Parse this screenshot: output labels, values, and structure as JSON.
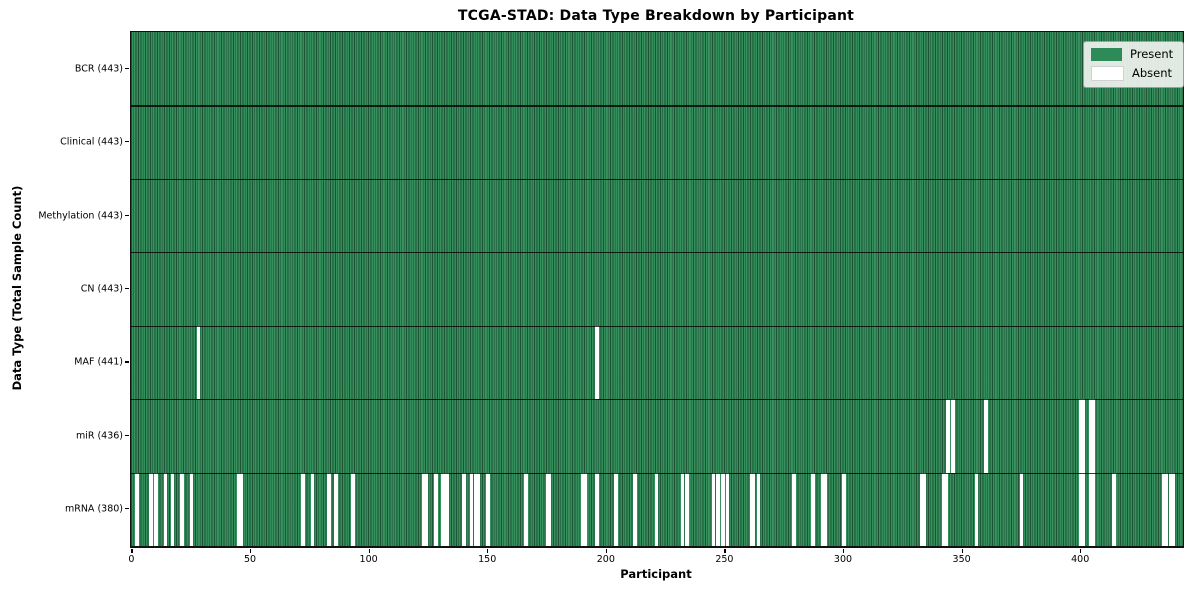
{
  "chart_data": {
    "type": "heatmap",
    "title": "TCGA-STAD: Data Type Breakdown by Participant",
    "xlabel": "Participant",
    "ylabel": "Data Type (Total Sample Count)",
    "x_range": [
      0,
      443
    ],
    "x_ticks": [
      0,
      50,
      100,
      150,
      200,
      250,
      300,
      350,
      400
    ],
    "n_participants": 443,
    "grid": false,
    "legend_position": "upper right",
    "colors": {
      "present": "#2e8b57",
      "absent": "#ffffff",
      "bar_edge": "rgba(0,0,0,0.40)"
    },
    "legend": [
      {
        "label": "Present",
        "color": "#2e8b57"
      },
      {
        "label": "Absent",
        "color": "#ffffff"
      }
    ],
    "rows": [
      {
        "label": "BCR (443)",
        "data_type": "BCR",
        "total_samples": 443,
        "absent_participants": []
      },
      {
        "label": "Clinical (443)",
        "data_type": "Clinical",
        "total_samples": 443,
        "absent_participants": []
      },
      {
        "label": "Methylation (443)",
        "data_type": "Methylation",
        "total_samples": 443,
        "absent_participants": []
      },
      {
        "label": "CN (443)",
        "data_type": "CN",
        "total_samples": 443,
        "absent_participants": []
      },
      {
        "label": "MAF (441)",
        "data_type": "MAF",
        "total_samples": 441,
        "absent_participants": [
          28,
          196
        ]
      },
      {
        "label": "miR (436)",
        "data_type": "miR",
        "total_samples": 436,
        "absent_participants": [
          344,
          346,
          360,
          400,
          401,
          404,
          405
        ]
      },
      {
        "label": "mRNA (380)",
        "data_type": "mRNA",
        "total_samples": 380,
        "absent_participants": [
          2,
          8,
          10,
          14,
          17,
          21,
          25,
          45,
          46,
          72,
          76,
          83,
          86,
          93,
          123,
          124,
          128,
          131,
          132,
          133,
          140,
          143,
          145,
          146,
          150,
          166,
          175,
          176,
          190,
          191,
          196,
          204,
          212,
          221,
          232,
          234,
          245,
          247,
          249,
          251,
          261,
          262,
          264,
          279,
          287,
          291,
          292,
          300,
          333,
          334,
          342,
          343,
          356,
          375,
          400,
          401,
          404,
          405,
          414,
          435,
          436,
          438,
          439
        ]
      }
    ]
  }
}
